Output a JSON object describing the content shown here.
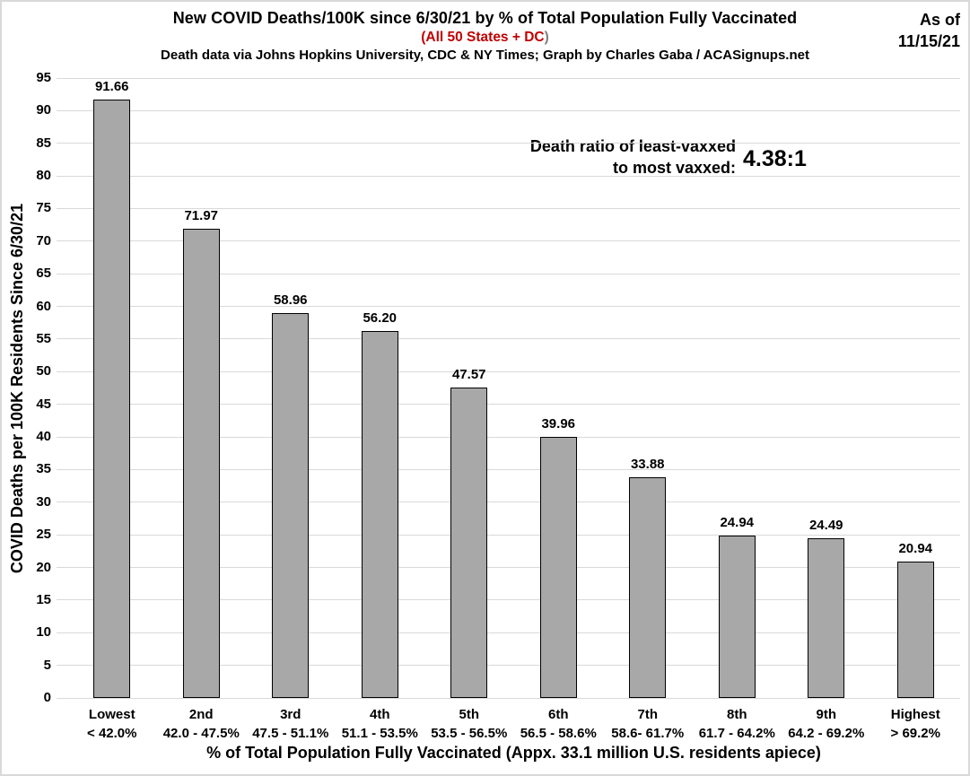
{
  "header": {
    "title": "New COVID Deaths/100K since 6/30/21 by % of Total Population Fully Vaccinated",
    "subtitle": {
      "open": "(",
      "text": "All 50 States + DC",
      "close": ")"
    },
    "credit": "Death data via Johns Hopkins University, CDC & NY Times; Graph by Charles Gaba / ACASignups.net",
    "as_of": {
      "line1": "As of",
      "line2": "11/15/21"
    }
  },
  "annotation": {
    "line1": "Death ratio of least-vaxxed",
    "line2": "to most vaxxed:",
    "ratio": "4.38:1"
  },
  "colors": {
    "bar_fill": "#a8a8a8",
    "bar_border": "#000000",
    "gridline": "#d9d9d9",
    "accent_red": "#c00000",
    "paren_gray": "#808080",
    "frame": "#d9d9d9",
    "background": "#ffffff",
    "text": "#000000"
  },
  "chart_data": {
    "type": "bar",
    "title": "New COVID Deaths/100K since 6/30/21 by % of Total Population Fully Vaccinated",
    "subtitle": "(All 50 States + DC)",
    "categories": [
      {
        "rank": "Lowest",
        "range": "< 42.0%"
      },
      {
        "rank": "2nd",
        "range": "42.0 - 47.5%"
      },
      {
        "rank": "3rd",
        "range": "47.5 - 51.1%"
      },
      {
        "rank": "4th",
        "range": "51.1 - 53.5%"
      },
      {
        "rank": "5th",
        "range": "53.5 - 56.5%"
      },
      {
        "rank": "6th",
        "range": "56.5 - 58.6%"
      },
      {
        "rank": "7th",
        "range": "58.6- 61.7%"
      },
      {
        "rank": "8th",
        "range": "61.7 - 64.2%"
      },
      {
        "rank": "9th",
        "range": "64.2 - 69.2%"
      },
      {
        "rank": "Highest",
        "range": "> 69.2%"
      }
    ],
    "values": [
      91.66,
      71.97,
      58.96,
      56.2,
      47.57,
      39.96,
      33.88,
      24.94,
      24.49,
      20.94
    ],
    "value_labels": [
      "91.66",
      "71.97",
      "58.96",
      "56.20",
      "47.57",
      "39.96",
      "33.88",
      "24.94",
      "24.49",
      "20.94"
    ],
    "xlabel": "% of Total Population Fully Vaccinated (Appx. 33.1 million U.S. residents apiece)",
    "ylabel": "COVID Deaths per 100K Residents Since 6/30/21",
    "ylim": [
      0,
      95
    ],
    "ytick_step": 5,
    "grid": true,
    "legend_position": "none"
  }
}
